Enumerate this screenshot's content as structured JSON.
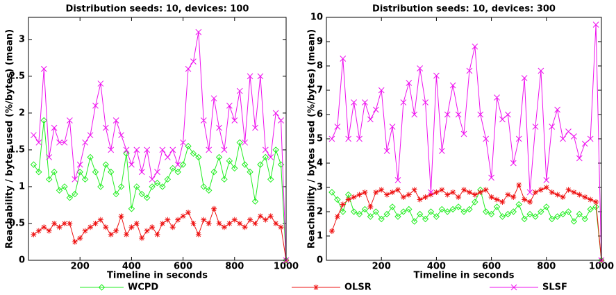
{
  "chart_data": [
    {
      "type": "line",
      "title": "Distribution seeds: 10, devices: 100",
      "x_label": "Timeline in seconds",
      "y_label": "Reachability / bytes used (%/bytes) (mean)",
      "x": [
        20,
        40,
        60,
        80,
        100,
        120,
        140,
        160,
        180,
        200,
        220,
        240,
        260,
        280,
        300,
        320,
        340,
        360,
        380,
        400,
        420,
        440,
        460,
        480,
        500,
        520,
        540,
        560,
        580,
        600,
        620,
        640,
        660,
        680,
        700,
        720,
        740,
        760,
        780,
        800,
        820,
        840,
        860,
        880,
        900,
        920,
        940,
        960,
        980,
        1000
      ],
      "series": [
        {
          "name": "WCPD",
          "color": "#22ee22",
          "marker": "diamond",
          "values": [
            1.3,
            1.2,
            1.9,
            1.1,
            1.2,
            0.95,
            1.0,
            0.85,
            0.9,
            1.2,
            1.1,
            1.4,
            1.2,
            1.0,
            1.3,
            1.2,
            0.9,
            1.0,
            1.45,
            0.7,
            1.0,
            0.9,
            0.85,
            1.0,
            1.05,
            1.0,
            1.1,
            1.25,
            1.2,
            1.3,
            1.55,
            1.45,
            1.4,
            1.0,
            0.95,
            1.2,
            1.4,
            1.1,
            1.35,
            1.25,
            1.6,
            1.3,
            1.2,
            0.8,
            1.3,
            1.4,
            1.1,
            1.5,
            1.3,
            0
          ]
        },
        {
          "name": "OLSR",
          "color": "#ee1111",
          "marker": "asterisk",
          "values": [
            0.35,
            0.4,
            0.45,
            0.4,
            0.5,
            0.45,
            0.5,
            0.5,
            0.25,
            0.3,
            0.4,
            0.45,
            0.5,
            0.55,
            0.45,
            0.35,
            0.4,
            0.6,
            0.35,
            0.45,
            0.5,
            0.3,
            0.4,
            0.45,
            0.35,
            0.5,
            0.55,
            0.45,
            0.55,
            0.6,
            0.65,
            0.5,
            0.35,
            0.55,
            0.5,
            0.7,
            0.5,
            0.45,
            0.5,
            0.55,
            0.5,
            0.45,
            0.55,
            0.5,
            0.6,
            0.55,
            0.6,
            0.5,
            0.45,
            0
          ]
        },
        {
          "name": "SLSF",
          "color": "#ee11ee",
          "marker": "x",
          "values": [
            1.7,
            1.6,
            2.6,
            1.4,
            1.8,
            1.6,
            1.6,
            1.9,
            1.1,
            1.3,
            1.6,
            1.7,
            2.1,
            2.4,
            1.8,
            1.5,
            1.9,
            1.7,
            1.5,
            1.3,
            1.5,
            1.2,
            1.5,
            1.1,
            1.2,
            1.5,
            1.4,
            1.5,
            1.3,
            1.6,
            2.6,
            2.7,
            3.1,
            1.9,
            1.5,
            2.2,
            1.8,
            1.5,
            2.1,
            1.9,
            2.3,
            1.6,
            2.5,
            1.8,
            2.5,
            1.5,
            1.4,
            2.0,
            1.9,
            0
          ]
        }
      ],
      "xlim": [
        0,
        1000
      ],
      "xticks": [
        200,
        400,
        600,
        800,
        1000
      ],
      "ylim": [
        0,
        3.3
      ],
      "yticks": [
        0,
        0.5,
        1,
        1.5,
        2,
        2.5,
        3
      ]
    },
    {
      "type": "line",
      "title": "Distribution seeds: 10, devices: 300",
      "x_label": "Timeline in seconds",
      "y_label": "Reachability / bytes used (%/bytes) (mean)",
      "x": [
        20,
        40,
        60,
        80,
        100,
        120,
        140,
        160,
        180,
        200,
        220,
        240,
        260,
        280,
        300,
        320,
        340,
        360,
        380,
        400,
        420,
        440,
        460,
        480,
        500,
        520,
        540,
        560,
        580,
        600,
        620,
        640,
        660,
        680,
        700,
        720,
        740,
        760,
        780,
        800,
        820,
        840,
        860,
        880,
        900,
        920,
        940,
        960,
        980,
        1000
      ],
      "series": [
        {
          "name": "WCPD",
          "color": "#22ee22",
          "marker": "diamond",
          "values": [
            2.8,
            2.5,
            2.0,
            2.7,
            2.0,
            1.9,
            2.1,
            1.8,
            2.0,
            1.7,
            1.9,
            2.2,
            1.8,
            2.0,
            2.1,
            1.6,
            1.9,
            1.7,
            2.0,
            1.8,
            2.1,
            2.0,
            2.1,
            2.2,
            2.0,
            2.1,
            2.4,
            2.9,
            2.0,
            1.9,
            2.2,
            1.8,
            1.9,
            2.0,
            2.3,
            1.7,
            1.9,
            1.8,
            2.0,
            2.2,
            1.7,
            1.8,
            1.9,
            2.0,
            1.6,
            1.9,
            1.7,
            2.1,
            2.2,
            0
          ]
        },
        {
          "name": "OLSR",
          "color": "#ee1111",
          "marker": "asterisk",
          "values": [
            1.2,
            1.8,
            2.3,
            2.5,
            2.6,
            2.7,
            2.8,
            2.2,
            2.8,
            2.9,
            2.7,
            2.8,
            2.9,
            2.6,
            2.7,
            2.9,
            2.5,
            2.6,
            2.7,
            2.8,
            2.9,
            2.7,
            2.8,
            2.6,
            2.9,
            2.8,
            2.7,
            2.8,
            2.9,
            2.6,
            2.5,
            2.4,
            2.7,
            2.6,
            3.1,
            2.5,
            2.4,
            2.8,
            2.9,
            3.0,
            2.8,
            2.7,
            2.6,
            2.9,
            2.8,
            2.7,
            2.6,
            2.5,
            2.4,
            0
          ]
        },
        {
          "name": "SLSF",
          "color": "#ee11ee",
          "marker": "x",
          "values": [
            5.0,
            5.5,
            8.3,
            5.0,
            6.5,
            5.0,
            6.5,
            5.8,
            6.2,
            7.0,
            4.5,
            5.5,
            3.3,
            6.5,
            7.3,
            6.0,
            7.9,
            6.5,
            2.8,
            7.6,
            4.5,
            6.0,
            7.2,
            6.0,
            5.2,
            7.8,
            8.8,
            6.0,
            5.0,
            3.4,
            6.7,
            5.8,
            6.0,
            4.0,
            5.0,
            7.5,
            2.8,
            5.5,
            7.8,
            3.3,
            5.5,
            6.2,
            5.0,
            5.3,
            5.1,
            4.2,
            4.8,
            5.0,
            9.7,
            0
          ]
        }
      ],
      "xlim": [
        0,
        1000
      ],
      "xticks": [
        200,
        400,
        600,
        800,
        1000
      ],
      "ylim": [
        0,
        10
      ],
      "yticks": [
        0,
        1,
        2,
        3,
        4,
        5,
        6,
        7,
        8,
        9,
        10
      ]
    }
  ]
}
